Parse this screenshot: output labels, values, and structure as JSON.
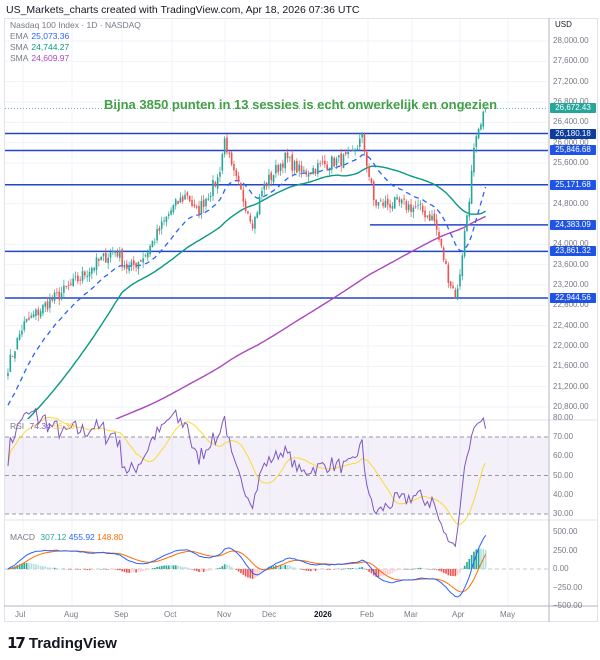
{
  "header": {
    "caption": "US_Markets_charts created with TradingView.com, Apr 18, 2026 07:36 UTC"
  },
  "legend": {
    "symbol": "Nasdaq 100 Index · 1D · NASDAQ",
    "indicators": [
      {
        "label": "EMA",
        "value": "25,073.36",
        "color": "#2962ff"
      },
      {
        "label": "SMA",
        "value": "24,744.27",
        "color": "#089981"
      },
      {
        "label": "SMA",
        "value": "24,609.97",
        "color": "#ab47bc"
      }
    ],
    "rsi": {
      "label": "RSI",
      "value": "74.34",
      "ma_value": "56.38",
      "color": "#7e57c2",
      "ma_color": "#fdd835"
    },
    "macd": {
      "label": "MACD",
      "hist": "307.12",
      "macd": "455.92",
      "signal": "148.80",
      "hist_color": "#26a69a",
      "macd_color": "#2962ff",
      "signal_color": "#ff6d00"
    }
  },
  "annotation": {
    "text": "Bijna 3850 punten in 13 sessies is echt onwerkelijk en ongezien",
    "color": "#43a047"
  },
  "price_axis": {
    "currency": "USD",
    "ticks": [
      "28,000.00",
      "27,600.00",
      "27,200.00",
      "26,800.00",
      "26,400.00",
      "26,000.00",
      "25,600.00",
      "24,800.00",
      "24,000.00",
      "23,600.00",
      "23,200.00",
      "22,800.00",
      "22,400.00",
      "22,000.00",
      "21,600.00",
      "21,200.00",
      "20,800.00"
    ],
    "tags": [
      {
        "value": "26,672.43",
        "color": "#26a69a"
      },
      {
        "value": "26,180.18",
        "color": "#0d3b9e"
      },
      {
        "value": "25,846.68",
        "color": "#1e53e5"
      },
      {
        "value": "25,171.68",
        "color": "#1e53e5"
      },
      {
        "value": "24,383.09",
        "color": "#1e53e5"
      },
      {
        "value": "23,861.32",
        "color": "#1e53e5"
      },
      {
        "value": "22,944.56",
        "color": "#1e53e5"
      }
    ]
  },
  "rsi_axis": {
    "ticks": [
      "80.00",
      "70.00",
      "60.00",
      "50.00",
      "40.00",
      "30.00"
    ]
  },
  "macd_axis": {
    "ticks": [
      "500.00",
      "250.00",
      "0.00",
      "−250.00",
      "−500.00"
    ]
  },
  "time_axis": {
    "labels": [
      "Jul",
      "Aug",
      "Sep",
      "Oct",
      "Nov",
      "Dec",
      "2026",
      "Feb",
      "Mar",
      "Apr",
      "May"
    ],
    "bold_index": 6
  },
  "footer": {
    "logo_mark": "17",
    "brand": "TradingView"
  },
  "chart_data": [
    {
      "type": "candlestick",
      "title": "Nasdaq 100 Index · 1D · NASDAQ",
      "ylabel": "USD",
      "ylim": [
        20600,
        28200
      ],
      "x_ticks": [
        "Jul",
        "Aug",
        "Sep",
        "Oct",
        "Nov",
        "Dec",
        "2026",
        "Feb",
        "Mar",
        "Apr",
        "May"
      ],
      "approx_close_waypoints": [
        {
          "t": "Jun 20",
          "close": 21600
        },
        {
          "t": "Jul 1",
          "close": 22400
        },
        {
          "t": "Jul 15",
          "close": 22800
        },
        {
          "t": "Aug 1",
          "close": 23200
        },
        {
          "t": "Aug 15",
          "close": 23600
        },
        {
          "t": "Aug 28",
          "close": 23900
        },
        {
          "t": "Sep 5",
          "close": 23500
        },
        {
          "t": "Sep 15",
          "close": 23800
        },
        {
          "t": "Oct 1",
          "close": 24700
        },
        {
          "t": "Oct 10",
          "close": 25000
        },
        {
          "t": "Oct 15",
          "close": 24600
        },
        {
          "t": "Oct 28",
          "close": 25300
        },
        {
          "t": "Nov 1",
          "close": 26100
        },
        {
          "t": "Nov 5",
          "close": 25500
        },
        {
          "t": "Nov 20",
          "close": 24400
        },
        {
          "t": "Nov 26",
          "close": 25100
        },
        {
          "t": "Dec 10",
          "close": 25700
        },
        {
          "t": "Dec 20",
          "close": 25400
        },
        {
          "t": "Jan 5",
          "close": 25600
        },
        {
          "t": "Jan 20",
          "close": 25700
        },
        {
          "t": "Jan 28",
          "close": 26100
        },
        {
          "t": "Feb 5",
          "close": 24800
        },
        {
          "t": "Feb 20",
          "close": 24800
        },
        {
          "t": "Mar 5",
          "close": 24700
        },
        {
          "t": "Mar 15",
          "close": 24500
        },
        {
          "t": "Mar 25",
          "close": 23300
        },
        {
          "t": "Mar 30",
          "close": 22950
        },
        {
          "t": "Apr 3",
          "close": 24000
        },
        {
          "t": "Apr 7",
          "close": 25000
        },
        {
          "t": "Apr 10",
          "close": 25900
        },
        {
          "t": "Apr 14",
          "close": 26300
        },
        {
          "t": "Apr 17",
          "close": 26672.43
        }
      ],
      "horizontal_levels": [
        26180.18,
        25846.68,
        25171.68,
        24383.09,
        23861.32,
        22944.56
      ],
      "series": [
        {
          "name": "EMA",
          "last": 25073.36,
          "color": "#2962ff",
          "style": "dashed"
        },
        {
          "name": "SMA (green)",
          "last": 24744.27,
          "color": "#089981"
        },
        {
          "name": "SMA (purple)",
          "last": 24609.97,
          "color": "#ab47bc"
        }
      ],
      "last_price": 26672.43
    },
    {
      "type": "line",
      "title": "RSI",
      "ylim": [
        25,
        82
      ],
      "bands": [
        30,
        50,
        70
      ],
      "series": [
        {
          "name": "RSI",
          "last": 74.34,
          "color": "#7e57c2"
        },
        {
          "name": "RSI MA",
          "last": 56.38,
          "color": "#fdd835"
        }
      ]
    },
    {
      "type": "bar+line",
      "title": "MACD",
      "ylim": [
        -550,
        550
      ],
      "series": [
        {
          "name": "Histogram",
          "last": 307.12
        },
        {
          "name": "MACD",
          "last": 455.92,
          "color": "#2962ff"
        },
        {
          "name": "Signal",
          "last": 148.8,
          "color": "#ff6d00"
        }
      ]
    }
  ]
}
